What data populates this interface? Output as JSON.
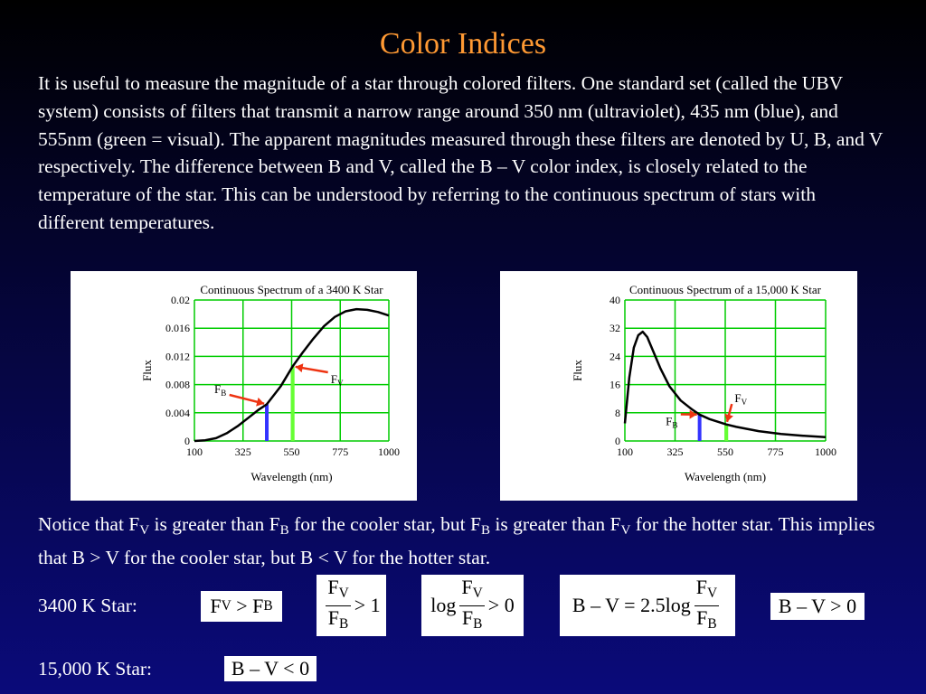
{
  "slide": {
    "title": "Color Indices",
    "intro": "It is useful to measure the magnitude of a star through colored filters. One standard set (called the UBV system) consists of filters that transmit a narrow range around 350 nm (ultraviolet), 435 nm (blue), and 555nm (green = visual). The apparent magnitudes measured through these filters are denoted by U, B, and V respectively. The difference between B and V, called the B – V color index, is closely related to the temperature of the star. This can be understood by referring to the continuous spectrum of stars with different temperatures.",
    "notice": {
      "p1": "Notice that F",
      "s1": "V",
      "p2": " is greater than F",
      "s2": "B",
      "p3": " for the cooler star, but F",
      "s3": "B",
      "p4": " is greater than F",
      "s4": "V",
      "p5": " for the hotter star. This implies that B > V for the cooler star, but B < V for the hotter star."
    },
    "label_3400": "3400 K Star:",
    "label_15000": "15,000 K Star:",
    "eq1": {
      "a": "F",
      "a_sub": "V",
      "op": " > ",
      "b": "F",
      "b_sub": "B"
    },
    "eq2": {
      "num": "F",
      "num_sub": "V",
      "den": "F",
      "den_sub": "B",
      "rhs": "> 1"
    },
    "eq3": {
      "fn": "log",
      "num": "F",
      "num_sub": "V",
      "den": "F",
      "den_sub": "B",
      "rhs": "> 0"
    },
    "eq4": {
      "lhs": "B – V = 2.5log",
      "num": "F",
      "num_sub": "V",
      "den": "F",
      "den_sub": "B"
    },
    "eq5": "B – V > 0",
    "eq6": "B – V < 0"
  },
  "chart_data": [
    {
      "type": "line",
      "title": "Continuous Spectrum of a 3400 K Star",
      "xlabel": "Wavelength (nm)",
      "ylabel": "Flux",
      "xlim": [
        100,
        1000
      ],
      "ylim": [
        0,
        0.02
      ],
      "xticks": [
        100,
        325,
        550,
        775,
        1000
      ],
      "yticks": [
        0,
        0.004,
        0.008,
        0.012,
        0.016,
        0.02
      ],
      "ytick_labels": [
        "0",
        "0.004",
        "0.008",
        "0.012",
        "0.016",
        "0.02"
      ],
      "grid": true,
      "grid_color": "#00cc00",
      "x": [
        100,
        150,
        200,
        250,
        300,
        350,
        400,
        435,
        475,
        500,
        555,
        600,
        650,
        700,
        750,
        800,
        850,
        900,
        950,
        1000
      ],
      "y": [
        0.0,
        0.0001,
        0.0004,
        0.0011,
        0.0021,
        0.0033,
        0.0045,
        0.0052,
        0.0068,
        0.0078,
        0.0106,
        0.0125,
        0.0145,
        0.0163,
        0.0176,
        0.0184,
        0.0187,
        0.0186,
        0.0183,
        0.0178
      ],
      "markers": [
        {
          "label": "F",
          "sub": "B",
          "x": 435,
          "y": 0.0052,
          "color": "#3333ff",
          "label_x": 220,
          "label_y": 0.0068
        },
        {
          "label": "F",
          "sub": "V",
          "x": 555,
          "y": 0.0106,
          "color": "#66ff33",
          "label_x": 760,
          "label_y": 0.0082
        }
      ]
    },
    {
      "type": "line",
      "title": "Continuous Spectrum of a 15,000 K Star",
      "xlabel": "Wavelength (nm)",
      "ylabel": "Flux",
      "xlim": [
        100,
        1000
      ],
      "ylim": [
        0,
        40
      ],
      "xticks": [
        100,
        325,
        550,
        775,
        1000
      ],
      "yticks": [
        0,
        8,
        16,
        24,
        32,
        40
      ],
      "ytick_labels": [
        "0",
        "8",
        "16",
        "24",
        "32",
        "40"
      ],
      "grid": true,
      "grid_color": "#00cc00",
      "x": [
        100,
        120,
        140,
        160,
        180,
        200,
        230,
        260,
        300,
        350,
        400,
        435,
        480,
        555,
        600,
        700,
        800,
        900,
        1000
      ],
      "y": [
        5.0,
        18.0,
        26.5,
        30.0,
        31.0,
        29.5,
        25.0,
        20.5,
        15.5,
        11.5,
        9.0,
        7.5,
        6.2,
        4.7,
        4.0,
        2.8,
        2.0,
        1.5,
        1.1
      ],
      "markers": [
        {
          "label": "F",
          "sub": "B",
          "x": 435,
          "y": 7.5,
          "color": "#3333ff",
          "label_x": 310,
          "label_y": 4.5
        },
        {
          "label": "F",
          "sub": "V",
          "x": 555,
          "y": 4.7,
          "color": "#66ff33",
          "label_x": 620,
          "label_y": 11.0
        }
      ]
    }
  ]
}
